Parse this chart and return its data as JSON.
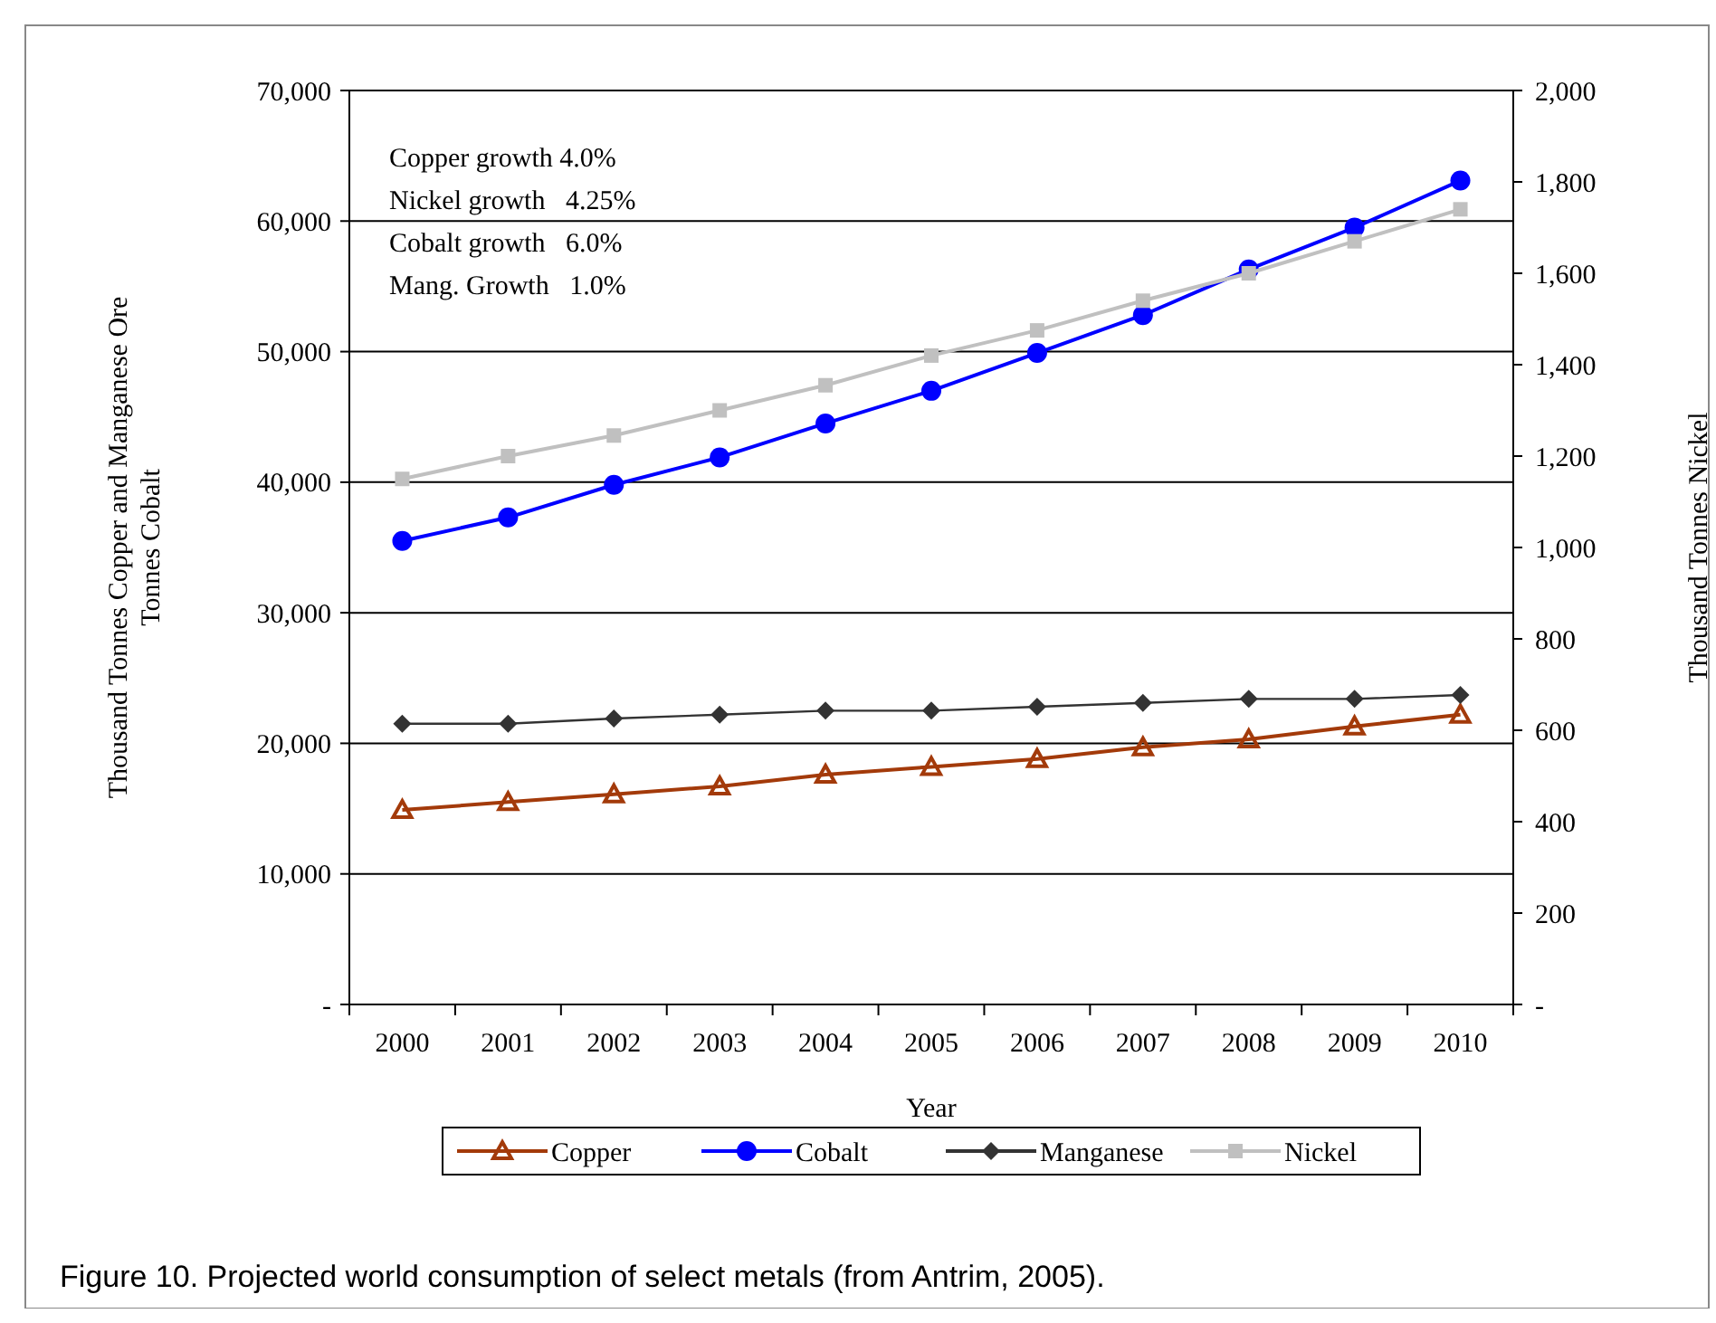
{
  "chart_data": {
    "type": "line",
    "xlabel": "Year",
    "ylabel": "Thousand Tonnes Copper and Manganese Ore\nTonnes Cobalt",
    "y2label": "Thousand Tonnes Nickel",
    "categories": [
      "2000",
      "2001",
      "2002",
      "2003",
      "2004",
      "2005",
      "2006",
      "2007",
      "2008",
      "2009",
      "2010"
    ],
    "series": [
      {
        "name": "Copper",
        "color": "#a33a0a",
        "marker": "triangle",
        "values": [
          14900,
          15500,
          16100,
          16700,
          17600,
          18200,
          18800,
          19700,
          20300,
          21300,
          22200
        ]
      },
      {
        "name": "Cobalt",
        "color": "#0000ff",
        "marker": "circle",
        "values": [
          35500,
          37300,
          39800,
          41900,
          44500,
          47000,
          49900,
          52800,
          56300,
          59500,
          63100
        ]
      },
      {
        "name": "Manganese",
        "color": "#333333",
        "marker": "diamond",
        "values": [
          21500,
          21500,
          21900,
          22200,
          22500,
          22500,
          22800,
          23100,
          23400,
          23400,
          23700
        ]
      },
      {
        "name": "Nickel",
        "color": "#c0c0c0",
        "marker": "square",
        "axis": "y2",
        "values": [
          1150,
          1200,
          1245,
          1300,
          1355,
          1420,
          1475,
          1540,
          1600,
          1670,
          1740
        ]
      }
    ],
    "ylim": [
      0,
      70000
    ],
    "yticks": [
      {
        "value": 0,
        "label": "-"
      },
      {
        "value": 10000,
        "label": "10,000"
      },
      {
        "value": 20000,
        "label": "20,000"
      },
      {
        "value": 30000,
        "label": "30,000"
      },
      {
        "value": 40000,
        "label": "40,000"
      },
      {
        "value": 50000,
        "label": "50,000"
      },
      {
        "value": 60000,
        "label": "60,000"
      },
      {
        "value": 70000,
        "label": "70,000"
      }
    ],
    "y2lim": [
      0,
      2000
    ],
    "y2ticks": [
      {
        "value": 0,
        "label": "-"
      },
      {
        "value": 200,
        "label": "200"
      },
      {
        "value": 400,
        "label": "400"
      },
      {
        "value": 600,
        "label": "600"
      },
      {
        "value": 800,
        "label": "800"
      },
      {
        "value": 1000,
        "label": "1,000"
      },
      {
        "value": 1200,
        "label": "1,200"
      },
      {
        "value": 1400,
        "label": "1,400"
      },
      {
        "value": 1600,
        "label": "1,600"
      },
      {
        "value": 1800,
        "label": "1,800"
      },
      {
        "value": 2000,
        "label": "2,000"
      }
    ],
    "grid": "y",
    "legend": "bottom",
    "annotations": [
      "Copper growth 4.0%",
      "Nickel growth   4.25%",
      "Cobalt growth   6.0%",
      "Mang. Growth   1.0%",
      "Figure 10.  Projected world consumption of select metals (from Antrim, 2005)."
    ]
  }
}
